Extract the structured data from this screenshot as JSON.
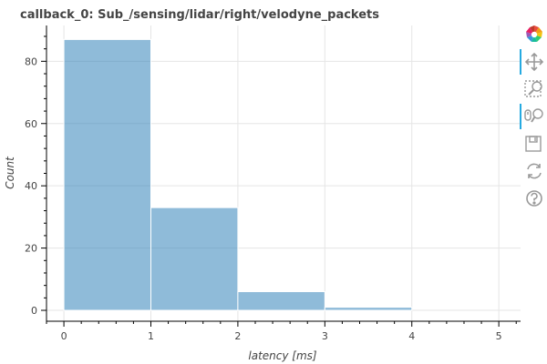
{
  "chart_data": {
    "type": "bar",
    "title": "callback_0: Sub_/sensing/lidar/right/velodyne_packets",
    "xlabel": "latency [ms]",
    "ylabel": "Count",
    "bins": [
      {
        "x0": 0,
        "x1": 1,
        "count": 87
      },
      {
        "x0": 1,
        "x1": 2,
        "count": 33
      },
      {
        "x0": 2,
        "x1": 3,
        "count": 6
      },
      {
        "x0": 3,
        "x1": 4,
        "count": 1
      }
    ],
    "xlim": [
      -0.2,
      5.25
    ],
    "ylim": [
      -3.5,
      91.5
    ],
    "xticks": [
      0,
      1,
      2,
      3,
      4,
      5
    ],
    "yticks": [
      0,
      20,
      40,
      60,
      80
    ],
    "grid": true,
    "bar_color": "#1f77b4"
  },
  "toolbar": {
    "tools": [
      {
        "name": "bokeh-logo-icon",
        "interactable": true,
        "active": false
      },
      {
        "name": "pan-tool-icon",
        "interactable": true,
        "active": true
      },
      {
        "name": "box-zoom-tool-icon",
        "interactable": true,
        "active": false
      },
      {
        "name": "wheel-zoom-tool-icon",
        "interactable": true,
        "active": true
      },
      {
        "name": "save-tool-icon",
        "interactable": true,
        "active": false
      },
      {
        "name": "reset-tool-icon",
        "interactable": true,
        "active": false
      },
      {
        "name": "help-tool-icon",
        "interactable": true,
        "active": false
      }
    ]
  }
}
